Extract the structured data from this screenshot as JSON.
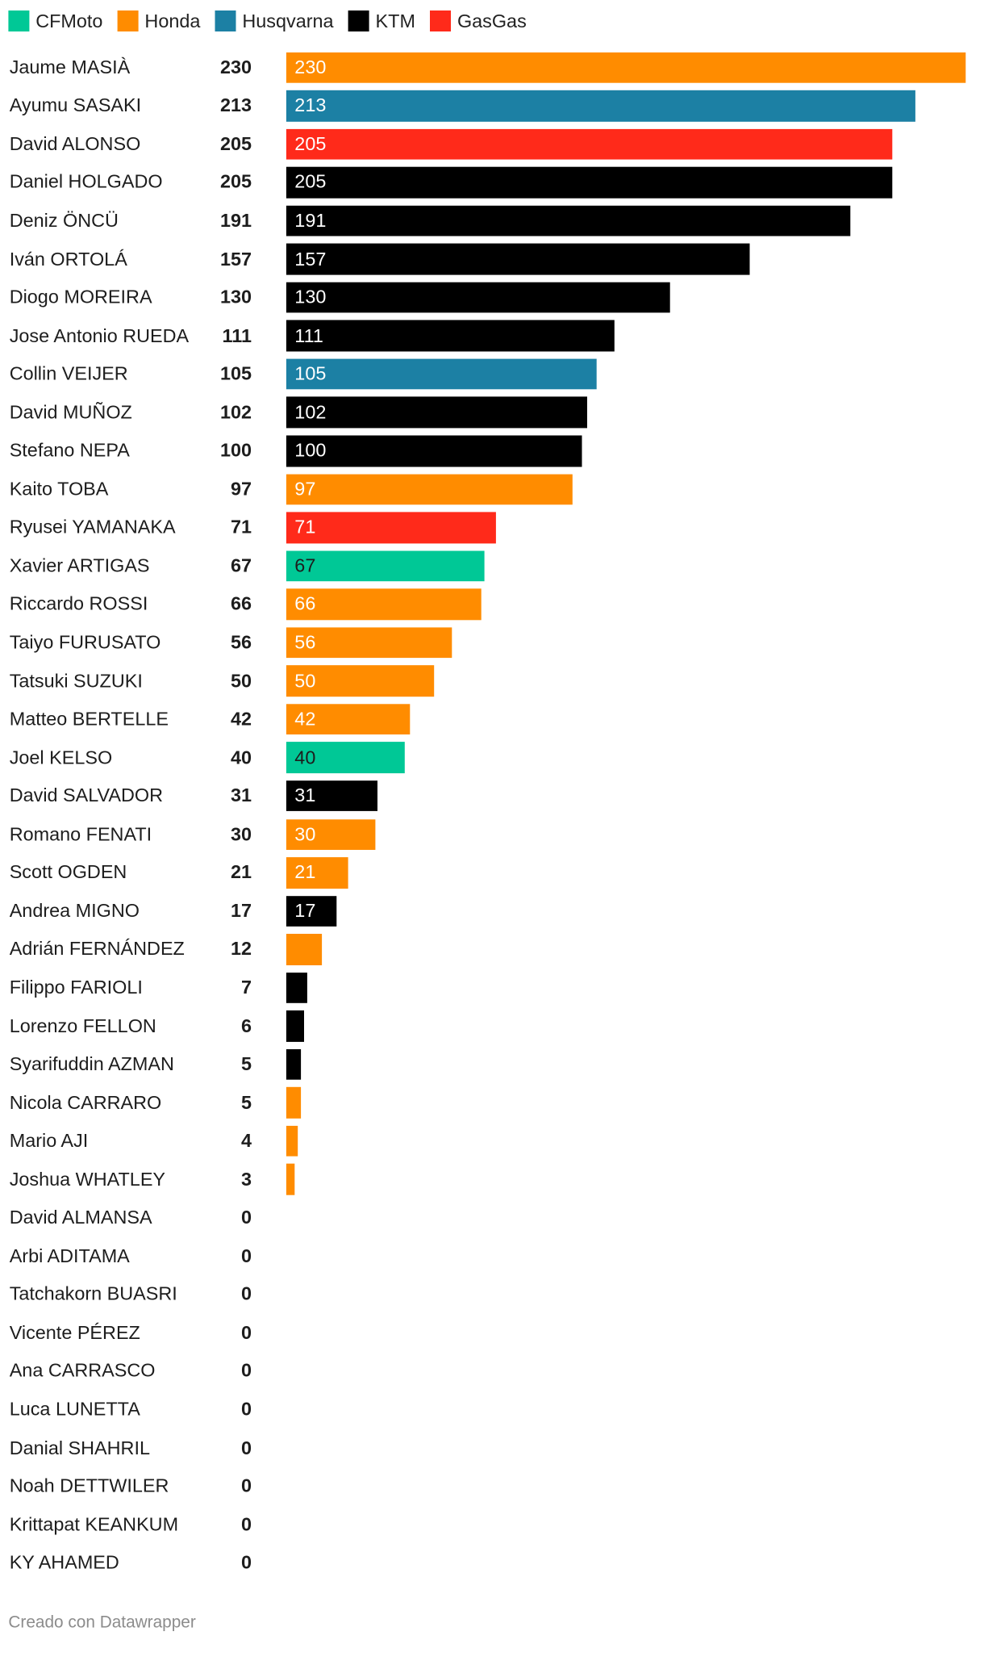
{
  "legend": [
    {
      "name": "CFMoto",
      "color": "#00c896"
    },
    {
      "name": "Honda",
      "color": "#ff8c00"
    },
    {
      "name": "Husqvarna",
      "color": "#1c80a4"
    },
    {
      "name": "KTM",
      "color": "#000000"
    },
    {
      "name": "GasGas",
      "color": "#ff2a1a"
    }
  ],
  "chart_data": {
    "type": "bar",
    "orientation": "horizontal",
    "xlim": [
      0,
      230
    ],
    "grid": false,
    "legend_placement": "top-left",
    "rows": [
      {
        "rider": "Jaume MASIÀ",
        "points": 230,
        "brand": "Honda",
        "bar_label": "230"
      },
      {
        "rider": "Ayumu SASAKI",
        "points": 213,
        "brand": "Husqvarna",
        "bar_label": "213"
      },
      {
        "rider": "David ALONSO",
        "points": 205,
        "brand": "GasGas",
        "bar_label": "205"
      },
      {
        "rider": "Daniel HOLGADO",
        "points": 205,
        "brand": "KTM",
        "bar_label": "205"
      },
      {
        "rider": "Deniz ÖNCÜ",
        "points": 191,
        "brand": "KTM",
        "bar_label": "191"
      },
      {
        "rider": "Iván ORTOLÁ",
        "points": 157,
        "brand": "KTM",
        "bar_label": "157"
      },
      {
        "rider": "Diogo MOREIRA",
        "points": 130,
        "brand": "KTM",
        "bar_label": "130"
      },
      {
        "rider": "Jose Antonio RUEDA",
        "points": 111,
        "brand": "KTM",
        "bar_label": "111"
      },
      {
        "rider": "Collin VEIJER",
        "points": 105,
        "brand": "Husqvarna",
        "bar_label": "105"
      },
      {
        "rider": "David MUÑOZ",
        "points": 102,
        "brand": "KTM",
        "bar_label": "102"
      },
      {
        "rider": "Stefano NEPA",
        "points": 100,
        "brand": "KTM",
        "bar_label": "100"
      },
      {
        "rider": "Kaito TOBA",
        "points": 97,
        "brand": "Honda",
        "bar_label": "97"
      },
      {
        "rider": "Ryusei YAMANAKA",
        "points": 71,
        "brand": "GasGas",
        "bar_label": "71"
      },
      {
        "rider": "Xavier ARTIGAS",
        "points": 67,
        "brand": "CFMoto",
        "bar_label": "67"
      },
      {
        "rider": "Riccardo ROSSI",
        "points": 66,
        "brand": "Honda",
        "bar_label": "66"
      },
      {
        "rider": "Taiyo FURUSATO",
        "points": 56,
        "brand": "Honda",
        "bar_label": "56"
      },
      {
        "rider": "Tatsuki SUZUKI",
        "points": 50,
        "brand": "Honda",
        "bar_label": "50"
      },
      {
        "rider": "Matteo BERTELLE",
        "points": 42,
        "brand": "Honda",
        "bar_label": "42"
      },
      {
        "rider": "Joel KELSO",
        "points": 40,
        "brand": "CFMoto",
        "bar_label": "40"
      },
      {
        "rider": "David SALVADOR",
        "points": 31,
        "brand": "KTM",
        "bar_label": "31"
      },
      {
        "rider": "Romano FENATI",
        "points": 30,
        "brand": "Honda",
        "bar_label": "30"
      },
      {
        "rider": "Scott OGDEN",
        "points": 21,
        "brand": "Honda",
        "bar_label": "21"
      },
      {
        "rider": "Andrea MIGNO",
        "points": 17,
        "brand": "KTM",
        "bar_label": "17"
      },
      {
        "rider": "Adrián FERNÁNDEZ",
        "points": 12,
        "brand": "Honda",
        "bar_label": ""
      },
      {
        "rider": "Filippo FARIOLI",
        "points": 7,
        "brand": "KTM",
        "bar_label": ""
      },
      {
        "rider": "Lorenzo FELLON",
        "points": 6,
        "brand": "KTM",
        "bar_label": ""
      },
      {
        "rider": "Syarifuddin AZMAN",
        "points": 5,
        "brand": "KTM",
        "bar_label": ""
      },
      {
        "rider": "Nicola CARRARO",
        "points": 5,
        "brand": "Honda",
        "bar_label": ""
      },
      {
        "rider": "Mario AJI",
        "points": 4,
        "brand": "Honda",
        "bar_label": ""
      },
      {
        "rider": "Joshua WHATLEY",
        "points": 3,
        "brand": "Honda",
        "bar_label": ""
      },
      {
        "rider": "David ALMANSA",
        "points": 0,
        "brand": "",
        "bar_label": ""
      },
      {
        "rider": "Arbi ADITAMA",
        "points": 0,
        "brand": "",
        "bar_label": ""
      },
      {
        "rider": "Tatchakorn BUASRI",
        "points": 0,
        "brand": "",
        "bar_label": ""
      },
      {
        "rider": "Vicente PÉREZ",
        "points": 0,
        "brand": "",
        "bar_label": ""
      },
      {
        "rider": "Ana CARRASCO",
        "points": 0,
        "brand": "",
        "bar_label": ""
      },
      {
        "rider": "Luca LUNETTA",
        "points": 0,
        "brand": "",
        "bar_label": ""
      },
      {
        "rider": "Danial SHAHRIL",
        "points": 0,
        "brand": "",
        "bar_label": ""
      },
      {
        "rider": "Noah DETTWILER",
        "points": 0,
        "brand": "",
        "bar_label": ""
      },
      {
        "rider": "Krittapat KEANKUM",
        "points": 0,
        "brand": "",
        "bar_label": ""
      },
      {
        "rider": "KY AHAMED",
        "points": 0,
        "brand": "",
        "bar_label": ""
      }
    ]
  },
  "footer": "Creado con Datawrapper"
}
